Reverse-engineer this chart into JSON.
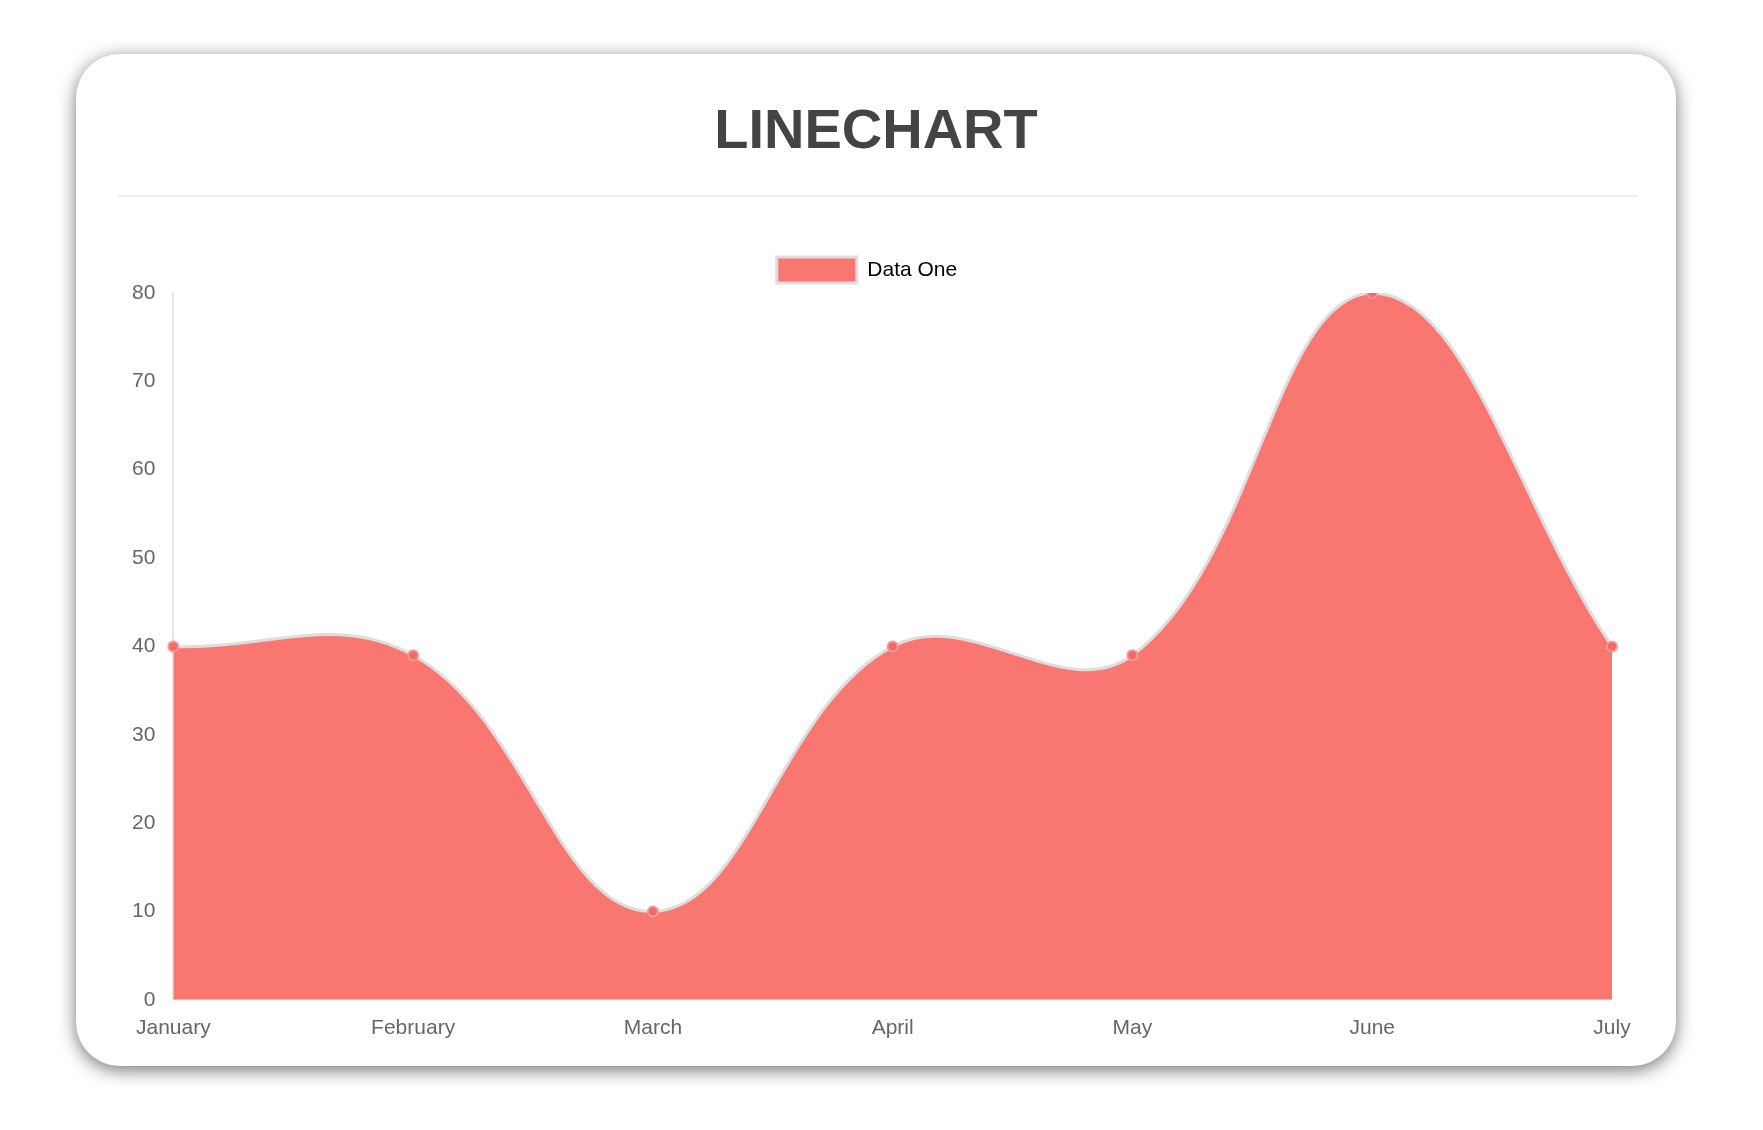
{
  "chart_data": {
    "type": "area",
    "title": "LINECHART",
    "categories": [
      "January",
      "February",
      "March",
      "April",
      "May",
      "June",
      "July"
    ],
    "series": [
      {
        "name": "Data One",
        "color": "#fa7671",
        "values": [
          40,
          39,
          10,
          40,
          39,
          80,
          40
        ]
      }
    ],
    "ylim": [
      0,
      80
    ],
    "yticks": [
      0,
      10,
      20,
      30,
      40,
      50,
      60,
      70,
      80
    ],
    "grid": false,
    "legend": "top",
    "marker": "circle"
  }
}
